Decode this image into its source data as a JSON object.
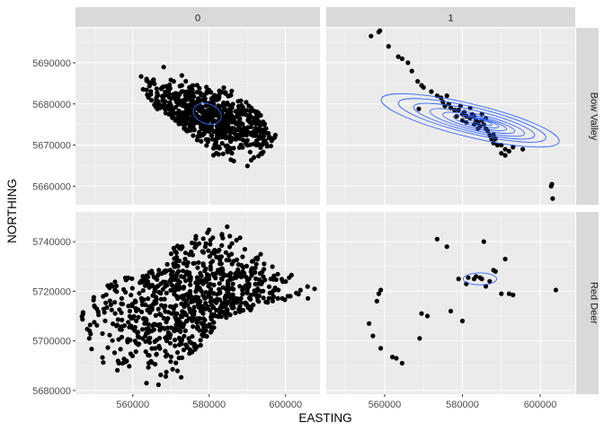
{
  "chart_data": {
    "type": "scatter",
    "overlay": "2d density contours (blue)",
    "xlabel": "EASTING",
    "ylabel": "NORTHING",
    "xlim": [
      545000,
      609000
    ],
    "x_ticks": [
      560000,
      580000,
      600000
    ],
    "x_tick_labels": [
      "560000",
      "580000",
      "600000"
    ],
    "y_ticks_row1": [
      5660000,
      5670000,
      5680000,
      5690000
    ],
    "y_tick_labels_row1": [
      "5660000",
      "5670000",
      "5680000",
      "5690000"
    ],
    "ylim_row1": [
      5655500,
      5698500
    ],
    "y_ticks_row2": [
      5680000,
      5700000,
      5720000,
      5740000
    ],
    "y_tick_labels_row2": [
      "5680000",
      "5700000",
      "5720000",
      "5740000"
    ],
    "ylim_row2": [
      5678500,
      5752000
    ],
    "column_strips": [
      "0",
      "1"
    ],
    "row_strips": [
      "Bow Valley",
      "Red Deer"
    ],
    "grid": true,
    "colors": {
      "points": "#000000",
      "contour": "#3366FF",
      "panel_bg": "#EBEBEB",
      "strip_bg": "#D9D9D9",
      "grid_major": "#FFFFFF"
    },
    "panels": [
      {
        "row": "Bow Valley",
        "column": "0",
        "cloud": {
          "n": 700,
          "seed": 11,
          "center": [
            578000,
            5677000
          ],
          "spread": [
            14000,
            4200
          ],
          "rotation_deg": -35,
          "polygon": [
            [
              563000,
              5691500
            ],
            [
              570000,
              5690000
            ],
            [
              574000,
              5686500
            ],
            [
              586000,
              5684000
            ],
            [
              592000,
              5679000
            ],
            [
              598000,
              5672000
            ],
            [
              598000,
              5664000
            ],
            [
              592000,
              5662500
            ],
            [
              584000,
              5664000
            ],
            [
              577000,
              5671000
            ],
            [
              571000,
              5676000
            ],
            [
              566000,
              5679000
            ],
            [
              562500,
              5683000
            ],
            [
              561500,
              5688000
            ]
          ]
        },
        "points": [],
        "contours": [
          {
            "center": [
              579500,
              5677600
            ],
            "rx": 3800,
            "ry": 2400,
            "rotation_deg": -20
          }
        ]
      },
      {
        "row": "Bow Valley",
        "column": "1",
        "cloud": {
          "n": 0
        },
        "points": [
          [
            556500,
            5696500
          ],
          [
            558500,
            5697500
          ],
          [
            558800,
            5697800
          ],
          [
            561000,
            5694000
          ],
          [
            563500,
            5691500
          ],
          [
            564500,
            5691000
          ],
          [
            566000,
            5690000
          ],
          [
            567000,
            5688000
          ],
          [
            568500,
            5685500
          ],
          [
            569500,
            5684500
          ],
          [
            570000,
            5684000
          ],
          [
            572000,
            5683000
          ],
          [
            573500,
            5682000
          ],
          [
            568800,
            5678800
          ],
          [
            574500,
            5681500
          ],
          [
            575000,
            5680500
          ],
          [
            576500,
            5680000
          ],
          [
            577000,
            5679000
          ],
          [
            578000,
            5678500
          ],
          [
            579000,
            5678500
          ],
          [
            580000,
            5677500
          ],
          [
            580500,
            5678000
          ],
          [
            581000,
            5677000
          ],
          [
            582000,
            5676500
          ],
          [
            582500,
            5677500
          ],
          [
            583000,
            5677000
          ],
          [
            583500,
            5676000
          ],
          [
            584000,
            5675500
          ],
          [
            584500,
            5674500
          ],
          [
            585000,
            5676000
          ],
          [
            585500,
            5675000
          ],
          [
            586000,
            5674000
          ],
          [
            586500,
            5673500
          ],
          [
            587000,
            5672500
          ],
          [
            587500,
            5671500
          ],
          [
            588000,
            5670500
          ],
          [
            588500,
            5671500
          ],
          [
            589000,
            5670000
          ],
          [
            590000,
            5670000
          ],
          [
            591000,
            5669000
          ],
          [
            592000,
            5668500
          ],
          [
            593000,
            5669500
          ],
          [
            595500,
            5669000
          ],
          [
            584000,
            5674000
          ],
          [
            582000,
            5679000
          ],
          [
            579500,
            5679500
          ],
          [
            576000,
            5682000
          ],
          [
            588000,
            5672500
          ],
          [
            590000,
            5668000
          ],
          [
            591000,
            5667500
          ],
          [
            602800,
            5660000
          ],
          [
            603200,
            5657000
          ],
          [
            603000,
            5660500
          ],
          [
            585000,
            5677500
          ],
          [
            586000,
            5676500
          ],
          [
            583000,
            5675000
          ],
          [
            581000,
            5675500
          ],
          [
            580000,
            5676000
          ],
          [
            578500,
            5677000
          ],
          [
            575500,
            5679500
          ]
        ],
        "contours": [
          {
            "center": [
              582000,
              5676000
            ],
            "rx": 23500,
            "ry": 4000,
            "rotation_deg": -13.5
          },
          {
            "center": [
              582500,
              5676000
            ],
            "rx": 19500,
            "ry": 3200,
            "rotation_deg": -13.5
          },
          {
            "center": [
              583000,
              5675800
            ],
            "rx": 16000,
            "ry": 2600,
            "rotation_deg": -13.5
          },
          {
            "center": [
              583800,
              5675500
            ],
            "rx": 12500,
            "ry": 2000,
            "rotation_deg": -13.5
          },
          {
            "center": [
              584200,
              5675400
            ],
            "rx": 9500,
            "ry": 1550,
            "rotation_deg": -13.5
          },
          {
            "center": [
              584500,
              5675400
            ],
            "rx": 7000,
            "ry": 1150,
            "rotation_deg": -13.5
          },
          {
            "center": [
              584700,
              5675500
            ],
            "rx": 4800,
            "ry": 800,
            "rotation_deg": -13.5
          },
          {
            "center": [
              584900,
              5675600
            ],
            "rx": 2800,
            "ry": 480,
            "rotation_deg": -13.5
          }
        ]
      },
      {
        "row": "Red Deer",
        "column": "0",
        "cloud": {
          "n": 850,
          "seed": 29,
          "center": [
            578000,
            5715000
          ],
          "spread": [
            18000,
            16000
          ],
          "rotation_deg": 0,
          "polygon": [
            [
              547000,
              5716000
            ],
            [
              552000,
              5723000
            ],
            [
              560000,
              5727000
            ],
            [
              568000,
              5729000
            ],
            [
              571000,
              5740000
            ],
            [
              578000,
              5748500
            ],
            [
              584000,
              5747000
            ],
            [
              592000,
              5737000
            ],
            [
              600000,
              5728000
            ],
            [
              608000,
              5722000
            ],
            [
              607000,
              5717000
            ],
            [
              598000,
              5715000
            ],
            [
              590000,
              5712000
            ],
            [
              582000,
              5706000
            ],
            [
              576000,
              5694000
            ],
            [
              572000,
              5683000
            ],
            [
              562000,
              5681500
            ],
            [
              556000,
              5686000
            ],
            [
              550000,
              5693000
            ],
            [
              546000,
              5702000
            ]
          ]
        },
        "points": [],
        "contours": []
      },
      {
        "row": "Red Deer",
        "column": "1",
        "cloud": {
          "n": 0
        },
        "points": [
          [
            558500,
            5719000
          ],
          [
            559000,
            5720500
          ],
          [
            558000,
            5716000
          ],
          [
            556000,
            5707000
          ],
          [
            557000,
            5702000
          ],
          [
            559000,
            5697000
          ],
          [
            562000,
            5693500
          ],
          [
            563000,
            5693000
          ],
          [
            564500,
            5691000
          ],
          [
            569000,
            5701000
          ],
          [
            569500,
            5711000
          ],
          [
            571000,
            5710000
          ],
          [
            573500,
            5741000
          ],
          [
            576000,
            5738000
          ],
          [
            577000,
            5712000
          ],
          [
            579000,
            5725000
          ],
          [
            580000,
            5708000
          ],
          [
            581000,
            5723000
          ],
          [
            581500,
            5725500
          ],
          [
            583000,
            5725000
          ],
          [
            583500,
            5726000
          ],
          [
            584500,
            5725500
          ],
          [
            585000,
            5725000
          ],
          [
            585500,
            5740000
          ],
          [
            586000,
            5722000
          ],
          [
            587000,
            5724000
          ],
          [
            588000,
            5728500
          ],
          [
            588500,
            5728000
          ],
          [
            590000,
            5719000
          ],
          [
            591000,
            5733000
          ],
          [
            592000,
            5719000
          ],
          [
            593000,
            5718500
          ],
          [
            604000,
            5720500
          ]
        ],
        "contours": [
          {
            "center": [
              584500,
              5725000
            ],
            "rx": 4300,
            "ry": 2400,
            "rotation_deg": 0
          }
        ]
      }
    ]
  }
}
